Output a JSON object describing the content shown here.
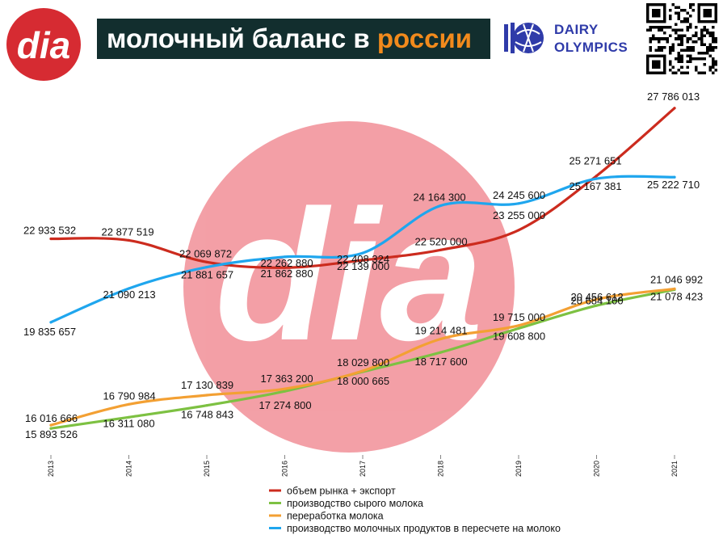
{
  "header": {
    "title_main": "молочный баланс в ",
    "title_accent": "россии",
    "partner_line1": "DAIRY",
    "partner_line2": "OLYMPICS"
  },
  "colors": {
    "brand_red": "#d62b32",
    "title_bg": "#122e2e",
    "title_accent": "#f28a1c",
    "partner_blue": "#2f3ba9"
  },
  "icons": {
    "logo": "dia-logo",
    "partner": "dairy-olympics-globe-icon",
    "qr": "qr-code"
  },
  "chart_data": {
    "type": "line",
    "x": [
      "2013",
      "2014",
      "2015",
      "2016",
      "2017",
      "2018",
      "2019",
      "2020",
      "2021"
    ],
    "ylim": [
      15000000,
      28500000
    ],
    "grid": false,
    "legend_position": "bottom",
    "series": [
      {
        "name": "объем рынка + экспорт",
        "color": "#cc2b1e",
        "values": [
          22933532,
          22877519,
          22069872,
          21862880,
          22139000,
          22520000,
          23255000,
          25271651,
          27786013
        ],
        "labels": [
          "22 933 532",
          "22 877 519",
          "22 069 872",
          "21 862 880",
          "22 139 000",
          "22 520 000",
          "23 255 000",
          "25 271 651",
          "27 786 013"
        ]
      },
      {
        "name": "производство сырого молока",
        "color": "#7dc142",
        "values": [
          15893526,
          16311080,
          16748843,
          17274800,
          18000665,
          18717600,
          19608800,
          20456612,
          21046992
        ],
        "labels": [
          "15 893 526",
          "16 311 080",
          "16 748 843",
          "17 274 800",
          "18 000 665",
          "18 717 600",
          "19 608 800",
          "20 456 612",
          "21 046 992"
        ]
      },
      {
        "name": "переработка молока",
        "color": "#f3a033",
        "values": [
          16016666,
          16790984,
          17130839,
          17363200,
          18029800,
          19214481,
          19715000,
          20684100,
          21078423
        ],
        "labels": [
          "16 016 666",
          "16 790 984",
          "17 130 839",
          "17 363 200",
          "18 029 800",
          "19 214 481",
          "19 715 000",
          "20 684 100",
          "21 078 423"
        ]
      },
      {
        "name": "производство молочных продуктов в пересчете на молоко",
        "color": "#1fa6ee",
        "values": [
          19835657,
          21090213,
          21881657,
          22262880,
          22408324,
          24164300,
          24245600,
          25167381,
          25222710
        ],
        "labels": [
          "19 835 657",
          "21 090 213",
          "21 881 657",
          "22 262 880",
          "22 408 324",
          "24 164 300",
          "24 245 600",
          "25 167 381",
          "25 222 710"
        ]
      }
    ]
  }
}
